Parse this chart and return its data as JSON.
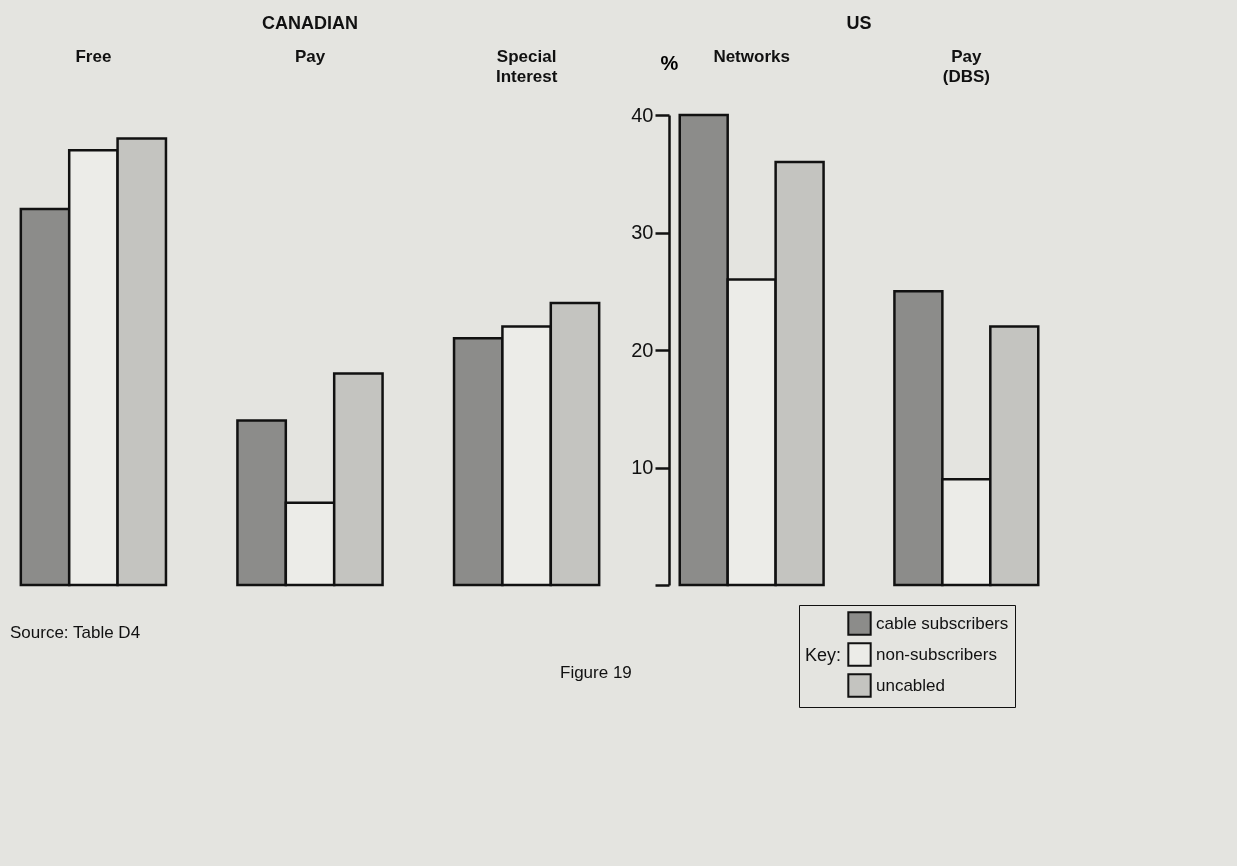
{
  "chart_data": [
    {
      "type": "bar",
      "title": "CANADIAN",
      "categories": [
        "Free",
        "Pay",
        "Special Interest"
      ],
      "series": [
        {
          "color": "#8c8c8a",
          "values": [
            32,
            14,
            21
          ]
        },
        {
          "color": "#ecece8",
          "values": [
            37,
            7,
            22
          ]
        },
        {
          "color": "#c4c4c0",
          "values": [
            38,
            18,
            24
          ]
        }
      ],
      "ylim": [
        0,
        40
      ],
      "tick_labels": "x",
      "annotations": [
        "Source:  Table D4"
      ]
    },
    {
      "type": "bar",
      "title": "US",
      "categories": [
        "Networks",
        "Pay (DBS)"
      ],
      "ylabel": "%",
      "series": [
        {
          "name": "cable subscribers",
          "color": "#8c8c8a",
          "values": [
            40,
            25
          ]
        },
        {
          "name": "non-subscribers",
          "color": "#ecece8",
          "values": [
            26,
            9
          ]
        },
        {
          "name": "uncabled",
          "color": "#c4c4c0",
          "values": [
            36,
            22
          ]
        }
      ],
      "ylim": [
        0,
        40
      ],
      "yticks": [
        {
          "value": 0,
          "label": null
        },
        10,
        20,
        30,
        40
      ],
      "legend": "bottom right",
      "legend_title": "Key:",
      "annotations": [
        "Figure 19"
      ]
    }
  ]
}
